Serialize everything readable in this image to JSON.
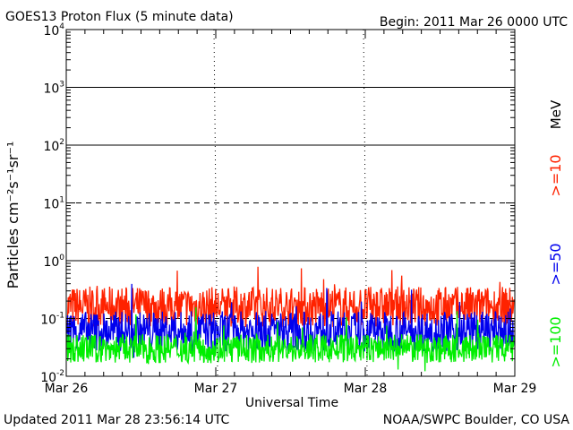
{
  "header": {
    "title": "GOES13 Proton Flux (5 minute data)",
    "begin": "Begin: 2011 Mar 26 0000 UTC"
  },
  "footer": {
    "updated": "Updated 2011 Mar 28 23:56:14 UTC",
    "credit": "NOAA/SWPC Boulder, CO USA"
  },
  "chart_data": {
    "type": "line",
    "title": "GOES13 Proton Flux (5 minute data)",
    "xlabel": "Universal Time",
    "ylabel": "Particles cm⁻²s⁻¹sr⁻¹",
    "x_ticks": [
      "Mar 26",
      "Mar 27",
      "Mar 28",
      "Mar 29"
    ],
    "y_scale": "log",
    "ylim": [
      0.01,
      10000
    ],
    "y_ticks": [
      {
        "base": "10",
        "exp": "4"
      },
      {
        "base": "10",
        "exp": "3"
      },
      {
        "base": "10",
        "exp": "2"
      },
      {
        "base": "10",
        "exp": "1"
      },
      {
        "base": "10",
        "exp": "0"
      },
      {
        "base": "10",
        "exp": "-1"
      },
      {
        "base": "10",
        "exp": "-2"
      }
    ],
    "unit_label": "MeV",
    "grid_solid": [
      1000,
      100,
      1
    ],
    "grid_dashed": [
      10,
      0.1
    ],
    "series": [
      {
        "name": ">=10",
        "color": "#ff2200",
        "base": 0.16,
        "spread": 0.35,
        "spikes": 0.6
      },
      {
        "name": ">=50",
        "color": "#0000ee",
        "base": 0.06,
        "spread": 0.35,
        "spikes": 0.8
      },
      {
        "name": ">=100",
        "color": "#00ee00",
        "base": 0.03,
        "spread": 0.25,
        "spikes": 0.7
      }
    ]
  }
}
